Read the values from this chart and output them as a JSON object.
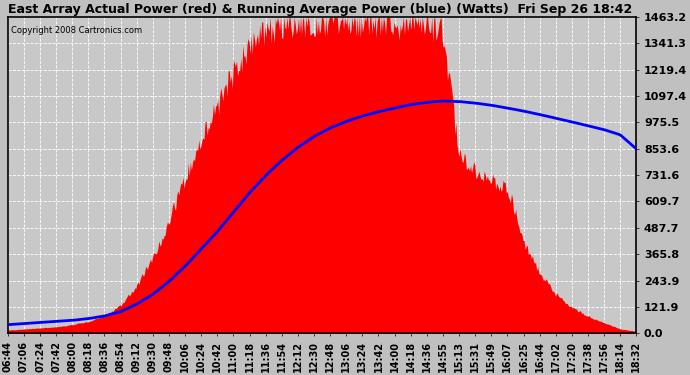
{
  "title": "East Array Actual Power (red) & Running Average Power (blue) (Watts)  Fri Sep 26 18:42",
  "copyright": "Copyright 2008 Cartronics.com",
  "bg_color": "#c0c0c0",
  "plot_bg_color": "#c8c8c8",
  "yticks": [
    0.0,
    121.9,
    243.9,
    365.8,
    487.7,
    609.7,
    731.6,
    853.6,
    975.5,
    1097.4,
    1219.4,
    1341.3,
    1463.2
  ],
  "ymax": 1463.2,
  "xtick_labels": [
    "06:44",
    "07:06",
    "07:24",
    "07:42",
    "08:00",
    "08:18",
    "08:36",
    "08:54",
    "09:12",
    "09:30",
    "09:48",
    "10:06",
    "10:24",
    "10:42",
    "11:00",
    "11:18",
    "11:36",
    "11:54",
    "12:12",
    "12:30",
    "12:48",
    "13:06",
    "13:24",
    "13:42",
    "14:00",
    "14:18",
    "14:36",
    "14:55",
    "15:13",
    "15:31",
    "15:49",
    "16:07",
    "16:25",
    "16:44",
    "17:02",
    "17:20",
    "17:38",
    "17:56",
    "18:14",
    "18:32"
  ],
  "red_fill_color": "#ff0000",
  "blue_line_color": "#0000ff",
  "grid_color": "#ffffff",
  "title_fontsize": 9,
  "axis_label_fontsize": 7,
  "ytick_fontsize": 8,
  "red_vals": [
    15,
    20,
    25,
    30,
    40,
    55,
    80,
    130,
    220,
    350,
    520,
    720,
    900,
    1050,
    1200,
    1330,
    1400,
    1430,
    1440,
    1445,
    1450,
    1448,
    1445,
    1440,
    1435,
    1430,
    1420,
    1380,
    820,
    750,
    700,
    680,
    420,
    280,
    180,
    120,
    80,
    50,
    20,
    10
  ],
  "blue_vals": [
    40,
    45,
    50,
    55,
    60,
    68,
    80,
    100,
    135,
    180,
    240,
    310,
    390,
    470,
    560,
    650,
    730,
    800,
    860,
    910,
    950,
    980,
    1005,
    1025,
    1042,
    1058,
    1068,
    1075,
    1072,
    1065,
    1055,
    1042,
    1028,
    1012,
    995,
    978,
    960,
    942,
    918,
    853
  ]
}
